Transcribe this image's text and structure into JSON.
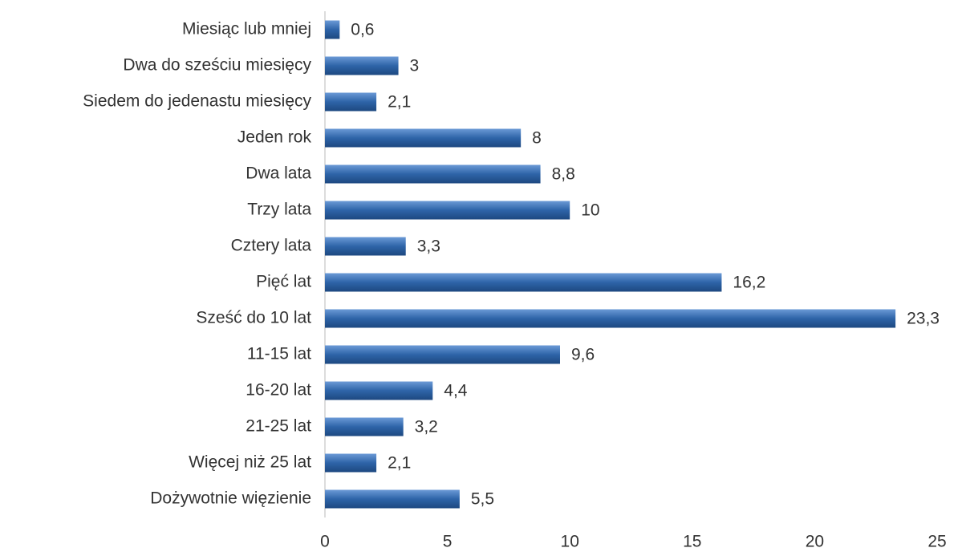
{
  "chart_data": {
    "type": "bar",
    "orientation": "horizontal",
    "categories": [
      "Miesiąc lub mniej",
      "Dwa do sześciu miesięcy",
      "Siedem do jedenastu miesięcy",
      "Jeden rok",
      "Dwa lata",
      "Trzy lata",
      "Cztery lata",
      "Pięć lat",
      "Sześć do 10 lat",
      "11-15 lat",
      "16-20 lat",
      "21-25 lat",
      "Więcej niż 25 lat",
      "Dożywotnie więzienie"
    ],
    "values": [
      0.6,
      3,
      2.1,
      8,
      8.8,
      10,
      3.3,
      16.2,
      23.3,
      9.6,
      4.4,
      3.2,
      2.1,
      5.5
    ],
    "value_labels": [
      "0,6",
      "3",
      "2,1",
      "8",
      "8,8",
      "10",
      "3,3",
      "16,2",
      "23,3",
      "9,6",
      "4,4",
      "3,2",
      "2,1",
      "5,5"
    ],
    "color": "#2e64a8",
    "xlim": [
      0,
      25
    ],
    "xticks": [
      0,
      5,
      10,
      15,
      20,
      25
    ],
    "grid": false
  }
}
